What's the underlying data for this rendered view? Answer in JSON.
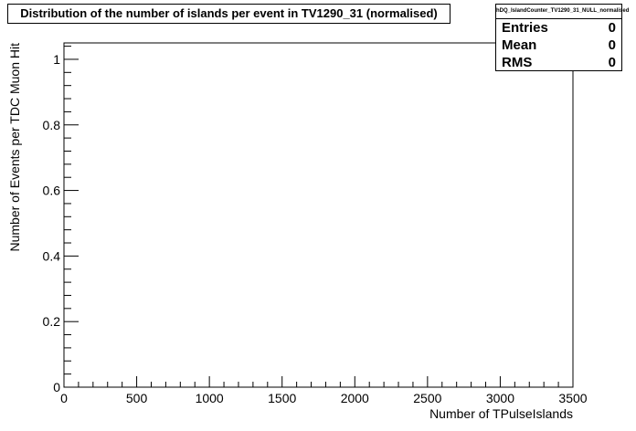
{
  "chart_data": {
    "type": "bar",
    "title": "Distribution of the number of islands per event in TV1290_31 (normalised)",
    "xlabel": "Number of TPulseIslands",
    "ylabel": "Number of Events per TDC Muon Hit",
    "xlim": [
      0,
      3500
    ],
    "ylim": [
      0,
      1.05
    ],
    "x_ticks": [
      "0",
      "500",
      "1000",
      "1500",
      "2000",
      "2500",
      "3000",
      "3500"
    ],
    "y_ticks": [
      "0",
      "0.2",
      "0.4",
      "0.6",
      "0.8",
      "1"
    ],
    "x_tick_values": [
      0,
      500,
      1000,
      1500,
      2000,
      2500,
      3000,
      3500
    ],
    "y_tick_values": [
      0,
      0.2,
      0.4,
      0.6,
      0.8,
      1.0
    ],
    "series": [],
    "grid": false
  },
  "stats": {
    "name": "hDQ_IslandCounter_TV1290_31_NULL_normalised",
    "rows": [
      {
        "label": "Entries",
        "value": "0"
      },
      {
        "label": "Mean",
        "value": "0"
      },
      {
        "label": "RMS",
        "value": "0"
      }
    ]
  }
}
